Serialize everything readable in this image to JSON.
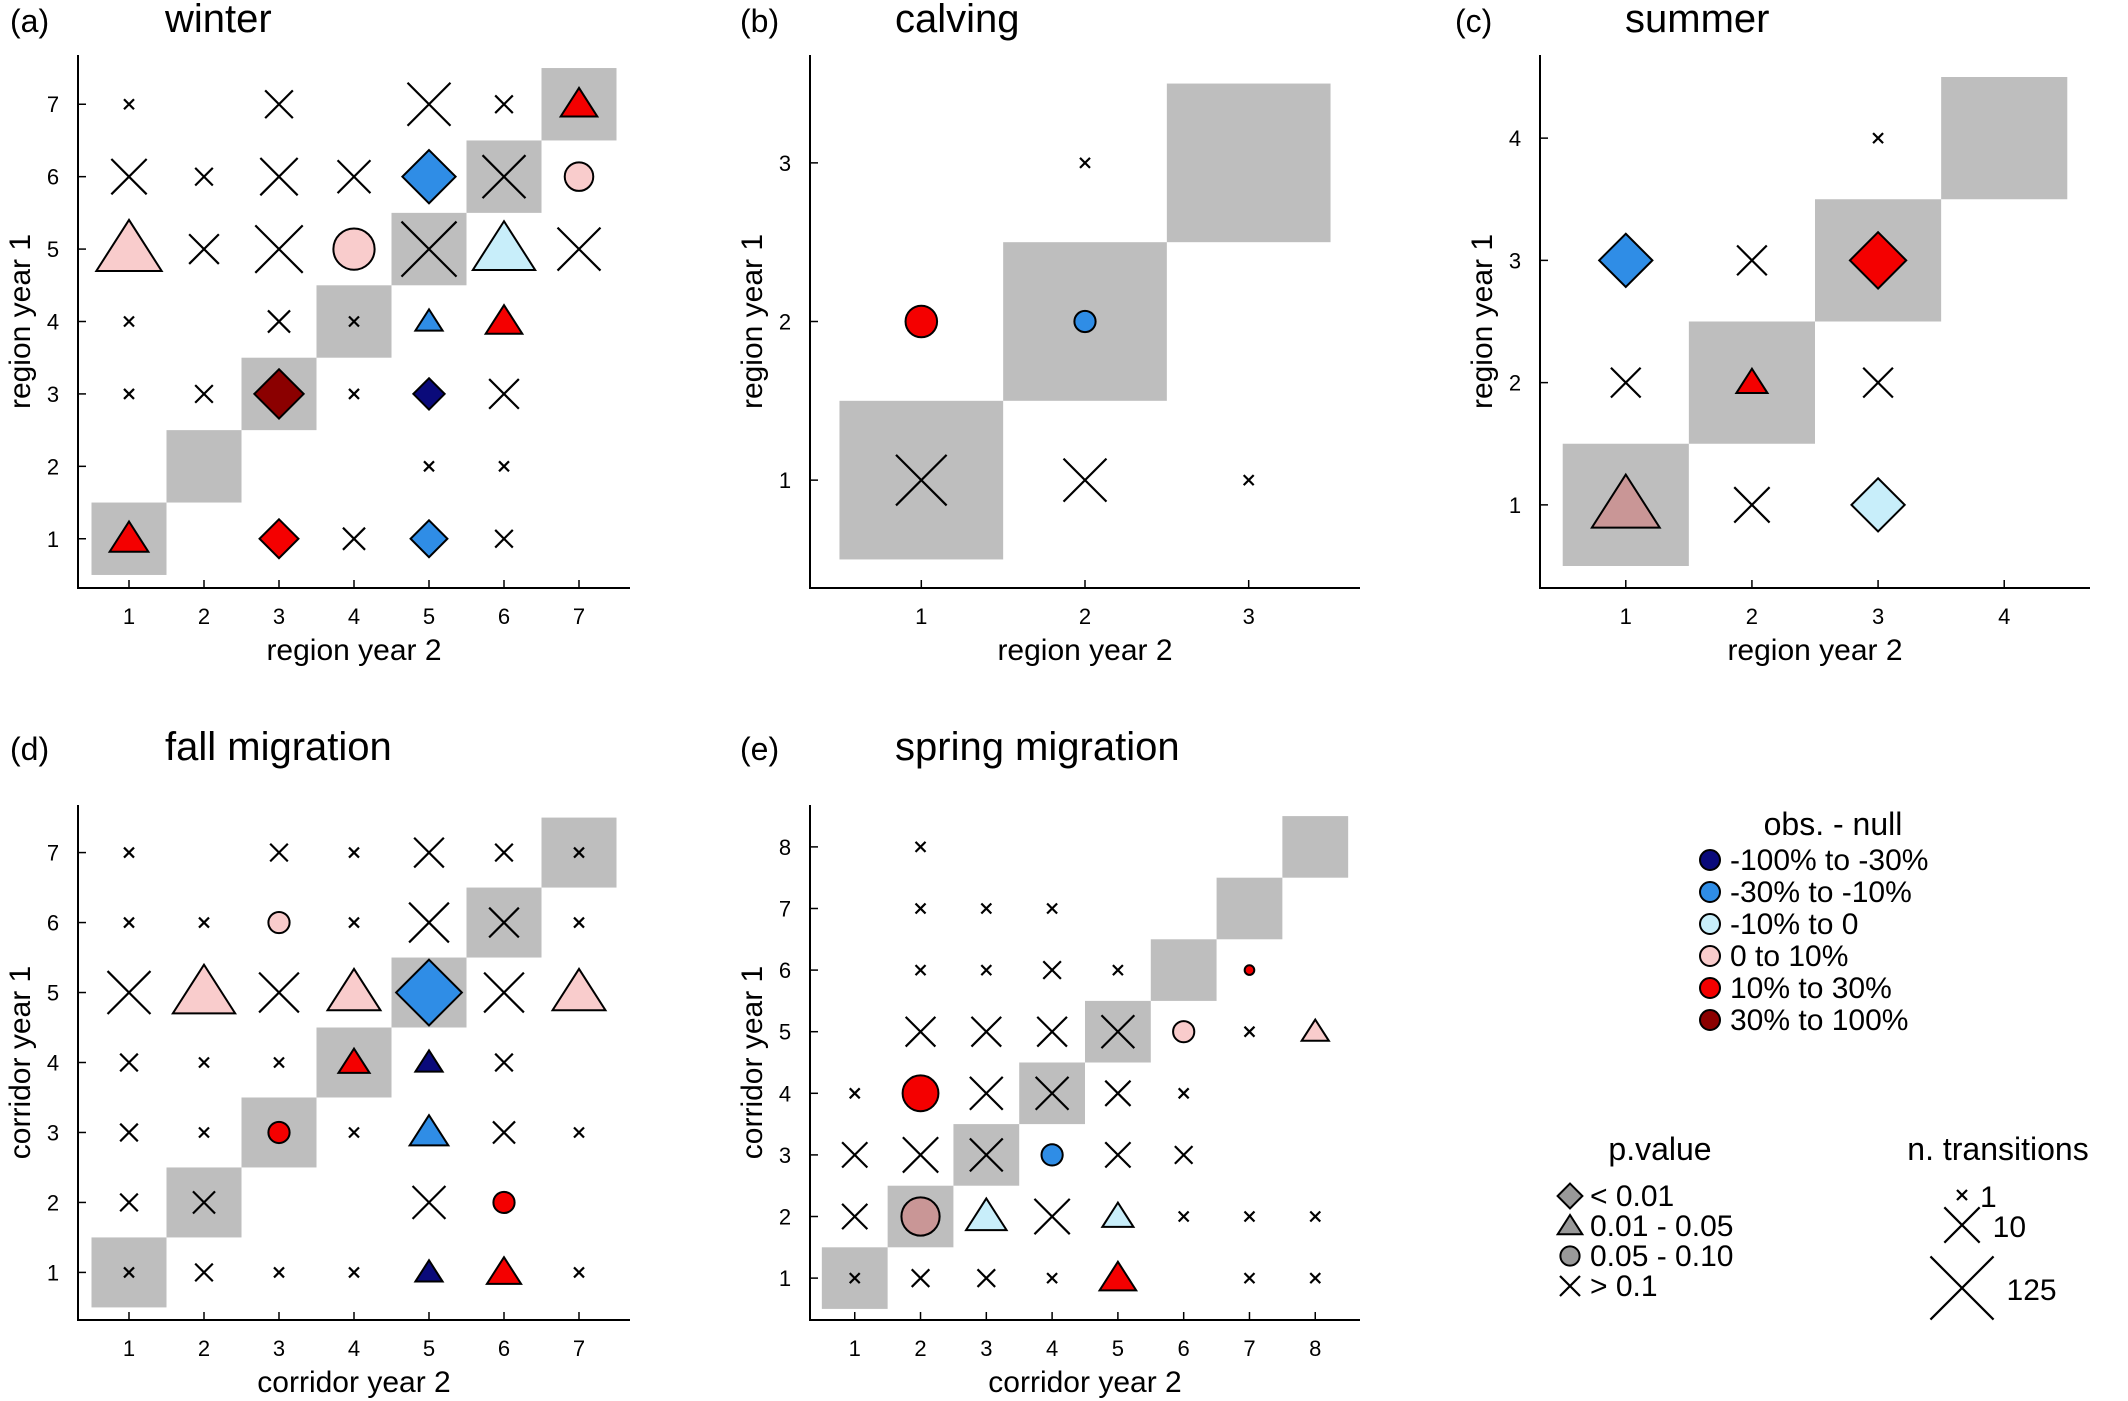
{
  "colors": {
    "diagonal": "#bebebe",
    "axis": "#000000",
    "classes": [
      "#0a0a7a",
      "#2f8de6",
      "#c8eefa",
      "#f9cccc",
      "#f40000",
      "#8b0000"
    ],
    "neutral_marker": "#999999"
  },
  "legend": {
    "color_title": "obs. - null",
    "color_entries": [
      "-100% to -30%",
      "-30% to -10%",
      "-10% to 0",
      "0 to 10%",
      "10% to 30%",
      "30% to 100%"
    ],
    "pvalue_title": "p.value",
    "pvalue_entries": [
      "< 0.01",
      "0.01 - 0.05",
      "0.05 - 0.10",
      "> 0.1"
    ],
    "pvalue_shapes": [
      "diamond",
      "triangle",
      "circle",
      "cross"
    ],
    "size_title": "n. transitions",
    "size_entries": [
      "1",
      "10",
      "125"
    ],
    "size_values": [
      1,
      10,
      125
    ]
  },
  "chart_data": [
    {
      "type": "scatter",
      "tag": "(a)",
      "title": "winter",
      "xlabel": "region year 2",
      "ylabel": "region year 1",
      "n": 7,
      "ticks": [
        "1",
        "2",
        "3",
        "4",
        "5",
        "6",
        "7"
      ],
      "points": [
        {
          "x": 1,
          "y": 7,
          "shape": "cross",
          "n": 1
        },
        {
          "x": 3,
          "y": 7,
          "shape": "cross",
          "n": 5
        },
        {
          "x": 5,
          "y": 7,
          "shape": "cross",
          "n": 20
        },
        {
          "x": 6,
          "y": 7,
          "shape": "cross",
          "n": 2
        },
        {
          "x": 7,
          "y": 7,
          "shape": "triangle",
          "color": 4,
          "n": 6
        },
        {
          "x": 1,
          "y": 6,
          "shape": "cross",
          "n": 10
        },
        {
          "x": 2,
          "y": 6,
          "shape": "cross",
          "n": 2
        },
        {
          "x": 3,
          "y": 6,
          "shape": "cross",
          "n": 12
        },
        {
          "x": 4,
          "y": 6,
          "shape": "cross",
          "n": 8
        },
        {
          "x": 5,
          "y": 6,
          "shape": "diamond",
          "color": 1,
          "n": 20
        },
        {
          "x": 6,
          "y": 6,
          "shape": "cross",
          "n": 20
        },
        {
          "x": 7,
          "y": 6,
          "shape": "circle",
          "color": 3,
          "n": 6
        },
        {
          "x": 1,
          "y": 5,
          "shape": "triangle",
          "color": 3,
          "n": 50
        },
        {
          "x": 2,
          "y": 5,
          "shape": "cross",
          "n": 6
        },
        {
          "x": 3,
          "y": 5,
          "shape": "cross",
          "n": 30
        },
        {
          "x": 4,
          "y": 5,
          "shape": "circle",
          "color": 3,
          "n": 20
        },
        {
          "x": 5,
          "y": 5,
          "shape": "cross",
          "n": 60
        },
        {
          "x": 6,
          "y": 5,
          "shape": "triangle",
          "color": 2,
          "n": 40
        },
        {
          "x": 7,
          "y": 5,
          "shape": "cross",
          "n": 20
        },
        {
          "x": 1,
          "y": 4,
          "shape": "cross",
          "n": 1
        },
        {
          "x": 3,
          "y": 4,
          "shape": "cross",
          "n": 3
        },
        {
          "x": 4,
          "y": 4,
          "shape": "cross",
          "n": 1
        },
        {
          "x": 5,
          "y": 4,
          "shape": "triangle",
          "color": 1,
          "n": 3
        },
        {
          "x": 6,
          "y": 4,
          "shape": "triangle",
          "color": 4,
          "n": 6
        },
        {
          "x": 1,
          "y": 3,
          "shape": "cross",
          "n": 1
        },
        {
          "x": 2,
          "y": 3,
          "shape": "cross",
          "n": 2
        },
        {
          "x": 3,
          "y": 3,
          "shape": "diamond",
          "color": 5,
          "n": 15
        },
        {
          "x": 4,
          "y": 3,
          "shape": "cross",
          "n": 1
        },
        {
          "x": 5,
          "y": 3,
          "shape": "diamond",
          "color": 0,
          "n": 4
        },
        {
          "x": 6,
          "y": 3,
          "shape": "cross",
          "n": 6
        },
        {
          "x": 5,
          "y": 2,
          "shape": "cross",
          "n": 1
        },
        {
          "x": 6,
          "y": 2,
          "shape": "cross",
          "n": 1
        },
        {
          "x": 1,
          "y": 1,
          "shape": "triangle",
          "color": 4,
          "n": 7
        },
        {
          "x": 3,
          "y": 1,
          "shape": "diamond",
          "color": 4,
          "n": 7
        },
        {
          "x": 4,
          "y": 1,
          "shape": "cross",
          "n": 3
        },
        {
          "x": 5,
          "y": 1,
          "shape": "diamond",
          "color": 1,
          "n": 6
        },
        {
          "x": 6,
          "y": 1,
          "shape": "cross",
          "n": 2
        }
      ]
    },
    {
      "type": "scatter",
      "tag": "(b)",
      "title": "calving",
      "xlabel": "region year 2",
      "ylabel": "region year 1",
      "n": 3,
      "ticks": [
        "1",
        "2",
        "3"
      ],
      "points": [
        {
          "x": 2,
          "y": 3,
          "shape": "cross",
          "n": 1
        },
        {
          "x": 1,
          "y": 2,
          "shape": "circle",
          "color": 4,
          "n": 8
        },
        {
          "x": 2,
          "y": 2,
          "shape": "circle",
          "color": 1,
          "n": 3
        },
        {
          "x": 1,
          "y": 1,
          "shape": "cross",
          "n": 40
        },
        {
          "x": 2,
          "y": 1,
          "shape": "cross",
          "n": 20
        },
        {
          "x": 3,
          "y": 1,
          "shape": "cross",
          "n": 1
        }
      ]
    },
    {
      "type": "scatter",
      "tag": "(c)",
      "title": "summer",
      "xlabel": "region year 2",
      "ylabel": "region year 1",
      "n": 4,
      "ticks": [
        "1",
        "2",
        "3",
        "4"
      ],
      "points": [
        {
          "x": 3,
          "y": 4,
          "shape": "cross",
          "n": 1
        },
        {
          "x": 1,
          "y": 3,
          "shape": "diamond",
          "color": 1,
          "n": 20
        },
        {
          "x": 2,
          "y": 3,
          "shape": "cross",
          "n": 6
        },
        {
          "x": 3,
          "y": 3,
          "shape": "diamond",
          "color": 4,
          "n": 25
        },
        {
          "x": 1,
          "y": 2,
          "shape": "cross",
          "n": 6
        },
        {
          "x": 2,
          "y": 2,
          "shape": "triangle",
          "color": 4,
          "n": 4
        },
        {
          "x": 3,
          "y": 2,
          "shape": "cross",
          "n": 6
        },
        {
          "x": 1,
          "y": 1,
          "shape": "triangle",
          "color": 5,
          "n": 60,
          "fill": "#c99696"
        },
        {
          "x": 2,
          "y": 1,
          "shape": "cross",
          "n": 10
        },
        {
          "x": 3,
          "y": 1,
          "shape": "diamond",
          "color": 2,
          "n": 20
        }
      ]
    },
    {
      "type": "scatter",
      "tag": "(d)",
      "title": "fall migration",
      "xlabel": "corridor year 2",
      "ylabel": "corridor year 1",
      "n": 7,
      "ticks": [
        "1",
        "2",
        "3",
        "4",
        "5",
        "6",
        "7"
      ],
      "points": [
        {
          "x": 1,
          "y": 7,
          "shape": "cross",
          "n": 1
        },
        {
          "x": 3,
          "y": 7,
          "shape": "cross",
          "n": 2
        },
        {
          "x": 4,
          "y": 7,
          "shape": "cross",
          "n": 1
        },
        {
          "x": 5,
          "y": 7,
          "shape": "cross",
          "n": 6
        },
        {
          "x": 6,
          "y": 7,
          "shape": "cross",
          "n": 2
        },
        {
          "x": 7,
          "y": 7,
          "shape": "cross",
          "n": 1
        },
        {
          "x": 1,
          "y": 6,
          "shape": "cross",
          "n": 1
        },
        {
          "x": 2,
          "y": 6,
          "shape": "cross",
          "n": 1
        },
        {
          "x": 3,
          "y": 6,
          "shape": "circle",
          "color": 3,
          "n": 3
        },
        {
          "x": 4,
          "y": 6,
          "shape": "cross",
          "n": 1
        },
        {
          "x": 5,
          "y": 6,
          "shape": "cross",
          "n": 15
        },
        {
          "x": 6,
          "y": 6,
          "shape": "cross",
          "n": 6
        },
        {
          "x": 7,
          "y": 6,
          "shape": "cross",
          "n": 1
        },
        {
          "x": 1,
          "y": 5,
          "shape": "cross",
          "n": 20
        },
        {
          "x": 2,
          "y": 5,
          "shape": "triangle",
          "color": 3,
          "n": 40
        },
        {
          "x": 3,
          "y": 5,
          "shape": "cross",
          "n": 15
        },
        {
          "x": 4,
          "y": 5,
          "shape": "triangle",
          "color": 3,
          "n": 20
        },
        {
          "x": 5,
          "y": 5,
          "shape": "diamond",
          "color": 1,
          "n": 50
        },
        {
          "x": 6,
          "y": 5,
          "shape": "cross",
          "n": 15
        },
        {
          "x": 7,
          "y": 5,
          "shape": "triangle",
          "color": 3,
          "n": 20
        },
        {
          "x": 1,
          "y": 4,
          "shape": "cross",
          "n": 2
        },
        {
          "x": 2,
          "y": 4,
          "shape": "cross",
          "n": 1
        },
        {
          "x": 3,
          "y": 4,
          "shape": "cross",
          "n": 1
        },
        {
          "x": 4,
          "y": 4,
          "shape": "triangle",
          "color": 4,
          "n": 4
        },
        {
          "x": 5,
          "y": 4,
          "shape": "triangle",
          "color": 0,
          "n": 3
        },
        {
          "x": 6,
          "y": 4,
          "shape": "cross",
          "n": 2
        },
        {
          "x": 1,
          "y": 3,
          "shape": "cross",
          "n": 2
        },
        {
          "x": 2,
          "y": 3,
          "shape": "cross",
          "n": 1
        },
        {
          "x": 3,
          "y": 3,
          "shape": "circle",
          "color": 4,
          "n": 3
        },
        {
          "x": 4,
          "y": 3,
          "shape": "cross",
          "n": 1
        },
        {
          "x": 5,
          "y": 3,
          "shape": "triangle",
          "color": 1,
          "n": 7
        },
        {
          "x": 6,
          "y": 3,
          "shape": "cross",
          "n": 3
        },
        {
          "x": 7,
          "y": 3,
          "shape": "cross",
          "n": 1
        },
        {
          "x": 1,
          "y": 2,
          "shape": "cross",
          "n": 2
        },
        {
          "x": 2,
          "y": 2,
          "shape": "cross",
          "n": 3
        },
        {
          "x": 5,
          "y": 2,
          "shape": "cross",
          "n": 8
        },
        {
          "x": 6,
          "y": 2,
          "shape": "circle",
          "color": 4,
          "n": 3
        },
        {
          "x": 1,
          "y": 1,
          "shape": "cross",
          "n": 1
        },
        {
          "x": 2,
          "y": 1,
          "shape": "cross",
          "n": 2
        },
        {
          "x": 3,
          "y": 1,
          "shape": "cross",
          "n": 1
        },
        {
          "x": 4,
          "y": 1,
          "shape": "cross",
          "n": 1
        },
        {
          "x": 5,
          "y": 1,
          "shape": "triangle",
          "color": 0,
          "n": 3
        },
        {
          "x": 6,
          "y": 1,
          "shape": "triangle",
          "color": 4,
          "n": 5
        },
        {
          "x": 7,
          "y": 1,
          "shape": "cross",
          "n": 1
        }
      ]
    },
    {
      "type": "scatter",
      "tag": "(e)",
      "title": "spring migration",
      "xlabel": "corridor year 2",
      "ylabel": "corridor year 1",
      "n": 8,
      "ticks": [
        "1",
        "2",
        "3",
        "4",
        "5",
        "6",
        "7",
        "8"
      ],
      "points": [
        {
          "x": 2,
          "y": 8,
          "shape": "cross",
          "n": 1
        },
        {
          "x": 2,
          "y": 7,
          "shape": "cross",
          "n": 1
        },
        {
          "x": 3,
          "y": 7,
          "shape": "cross",
          "n": 1
        },
        {
          "x": 4,
          "y": 7,
          "shape": "cross",
          "n": 1
        },
        {
          "x": 2,
          "y": 6,
          "shape": "cross",
          "n": 1
        },
        {
          "x": 3,
          "y": 6,
          "shape": "cross",
          "n": 1
        },
        {
          "x": 4,
          "y": 6,
          "shape": "cross",
          "n": 2
        },
        {
          "x": 5,
          "y": 6,
          "shape": "cross",
          "n": 1
        },
        {
          "x": 7,
          "y": 6,
          "shape": "circle",
          "color": 4,
          "n": 1
        },
        {
          "x": 2,
          "y": 5,
          "shape": "cross",
          "n": 6
        },
        {
          "x": 3,
          "y": 5,
          "shape": "cross",
          "n": 6
        },
        {
          "x": 4,
          "y": 5,
          "shape": "cross",
          "n": 6
        },
        {
          "x": 5,
          "y": 5,
          "shape": "cross",
          "n": 8
        },
        {
          "x": 6,
          "y": 5,
          "shape": "circle",
          "color": 3,
          "n": 3
        },
        {
          "x": 7,
          "y": 5,
          "shape": "cross",
          "n": 1
        },
        {
          "x": 8,
          "y": 5,
          "shape": "triangle",
          "color": 3,
          "n": 3
        },
        {
          "x": 1,
          "y": 4,
          "shape": "cross",
          "n": 1
        },
        {
          "x": 2,
          "y": 4,
          "shape": "circle",
          "color": 4,
          "n": 12
        },
        {
          "x": 3,
          "y": 4,
          "shape": "cross",
          "n": 8
        },
        {
          "x": 4,
          "y": 4,
          "shape": "cross",
          "n": 8
        },
        {
          "x": 5,
          "y": 4,
          "shape": "cross",
          "n": 4
        },
        {
          "x": 6,
          "y": 4,
          "shape": "cross",
          "n": 1
        },
        {
          "x": 1,
          "y": 3,
          "shape": "cross",
          "n": 4
        },
        {
          "x": 2,
          "y": 3,
          "shape": "cross",
          "n": 10
        },
        {
          "x": 3,
          "y": 3,
          "shape": "cross",
          "n": 8
        },
        {
          "x": 4,
          "y": 3,
          "shape": "circle",
          "color": 1,
          "n": 3
        },
        {
          "x": 5,
          "y": 3,
          "shape": "cross",
          "n": 4
        },
        {
          "x": 6,
          "y": 3,
          "shape": "cross",
          "n": 2
        },
        {
          "x": 1,
          "y": 2,
          "shape": "cross",
          "n": 4
        },
        {
          "x": 2,
          "y": 2,
          "shape": "circle",
          "color": 5,
          "n": 15,
          "fill": "#c99696"
        },
        {
          "x": 3,
          "y": 2,
          "shape": "triangle",
          "color": 2,
          "n": 8
        },
        {
          "x": 4,
          "y": 2,
          "shape": "cross",
          "n": 10
        },
        {
          "x": 5,
          "y": 2,
          "shape": "triangle",
          "color": 2,
          "n": 4
        },
        {
          "x": 6,
          "y": 2,
          "shape": "cross",
          "n": 1
        },
        {
          "x": 7,
          "y": 2,
          "shape": "cross",
          "n": 1
        },
        {
          "x": 8,
          "y": 2,
          "shape": "cross",
          "n": 1
        },
        {
          "x": 1,
          "y": 1,
          "shape": "cross",
          "n": 1
        },
        {
          "x": 2,
          "y": 1,
          "shape": "cross",
          "n": 2
        },
        {
          "x": 3,
          "y": 1,
          "shape": "cross",
          "n": 2
        },
        {
          "x": 4,
          "y": 1,
          "shape": "cross",
          "n": 1
        },
        {
          "x": 5,
          "y": 1,
          "shape": "triangle",
          "color": 4,
          "n": 6
        },
        {
          "x": 7,
          "y": 1,
          "shape": "cross",
          "n": 1
        },
        {
          "x": 8,
          "y": 1,
          "shape": "cross",
          "n": 1
        }
      ]
    }
  ]
}
